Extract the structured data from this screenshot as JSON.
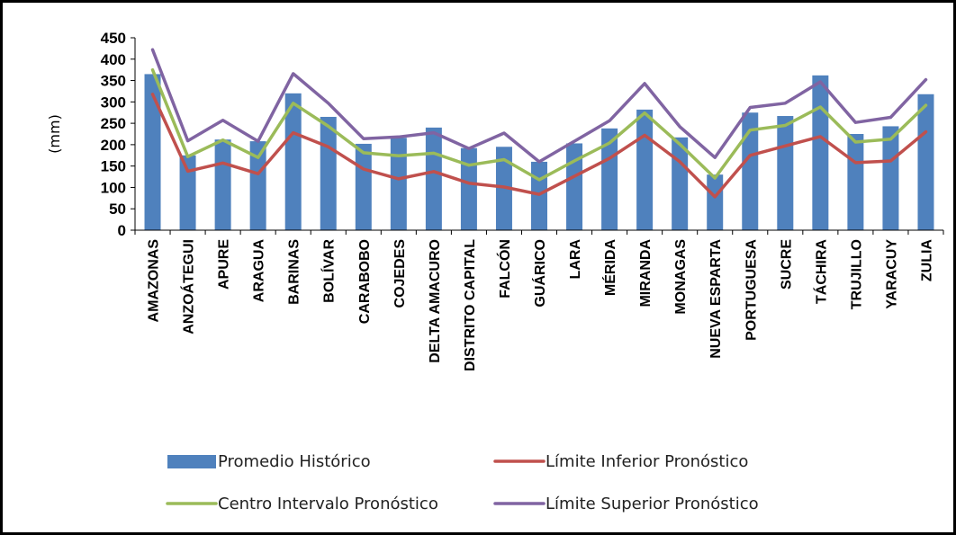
{
  "chart_data": {
    "type": "bar",
    "title": "",
    "xlabel": "",
    "ylabel": "(mm)",
    "ylim": [
      0,
      450
    ],
    "yticks": [
      0,
      50,
      100,
      150,
      200,
      250,
      300,
      350,
      400,
      450
    ],
    "grid": false,
    "legend_position": "bottom",
    "categories": [
      "AMAZONAS",
      "ANZOÁTEGUI",
      "APURE",
      "ARAGUA",
      "BARINAS",
      "BOLÍVAR",
      "CARABOBO",
      "COJEDES",
      "DELTA AMACURO",
      "DISTRITO CAPITAL",
      "FALCÓN",
      "GUÁRICO",
      "LARA",
      "MÉRIDA",
      "MIRANDA",
      "MONAGAS",
      "NUEVA ESPARTA",
      "PORTUGUESA",
      "SUCRE",
      "TÁCHIRA",
      "TRUJILLO",
      "YARACUY",
      "ZULIA"
    ],
    "series": [
      {
        "name": "Promedio Histórico",
        "kind": "bar",
        "color": "#4f81bd",
        "values": [
          365,
          175,
          212,
          208,
          320,
          265,
          202,
          216,
          240,
          192,
          195,
          160,
          203,
          238,
          282,
          217,
          130,
          275,
          267,
          362,
          225,
          243,
          318
        ]
      },
      {
        "name": "Límite Inferior Pronóstico",
        "kind": "line",
        "color": "#c0504d",
        "values": [
          318,
          138,
          157,
          132,
          228,
          195,
          143,
          120,
          137,
          110,
          101,
          84,
          126,
          168,
          222,
          160,
          78,
          175,
          197,
          219,
          158,
          162,
          230
        ]
      },
      {
        "name": "Centro Intervalo Pronóstico",
        "kind": "line",
        "color": "#9bbb59",
        "values": [
          375,
          172,
          211,
          170,
          297,
          243,
          181,
          174,
          180,
          152,
          165,
          118,
          162,
          204,
          274,
          201,
          122,
          234,
          245,
          288,
          206,
          213,
          292
        ]
      },
      {
        "name": "Límite Superior Pronóstico",
        "kind": "line",
        "color": "#8064a2",
        "values": [
          422,
          209,
          257,
          208,
          366,
          297,
          214,
          218,
          228,
          191,
          227,
          160,
          208,
          256,
          343,
          242,
          170,
          287,
          297,
          347,
          252,
          264,
          352
        ]
      }
    ]
  }
}
